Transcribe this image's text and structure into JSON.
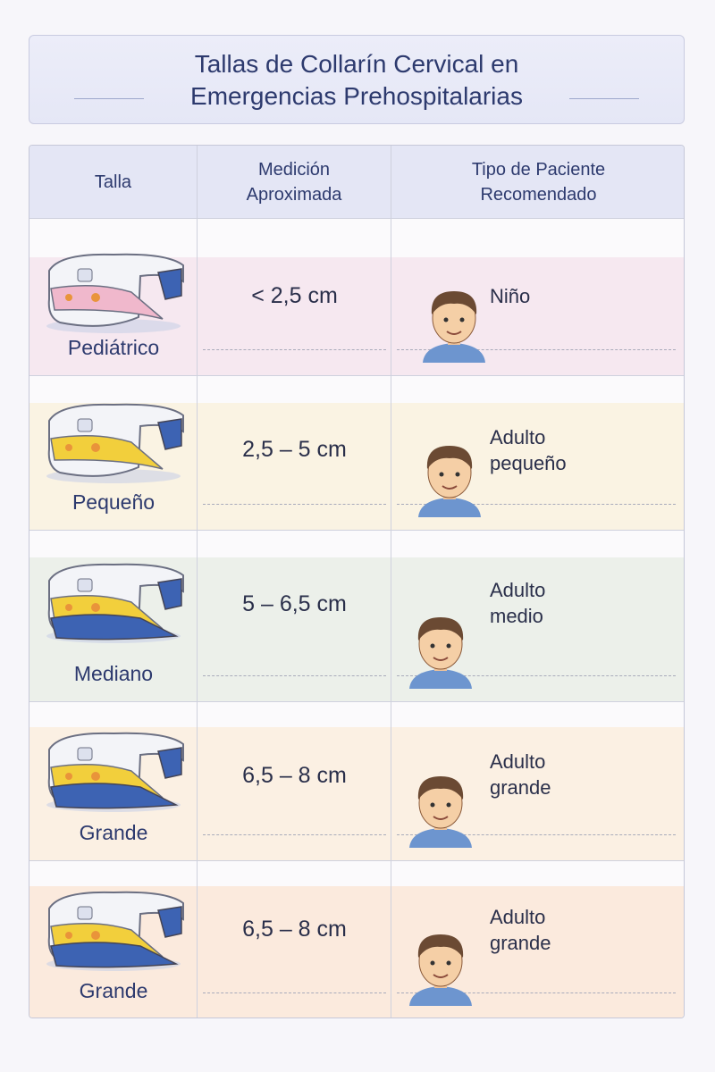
{
  "title": {
    "line1": "Tallas de Collarín Cervical en",
    "line2": "Emergencias Prehospitalarias"
  },
  "table": {
    "headers": [
      "Talla",
      "Medición Aproximada",
      "Tipo de Paciente Recomendado"
    ],
    "rows": [
      {
        "size": "Pediátrico",
        "measurement": "< 2,5 cm",
        "patient_line1": "Niño",
        "patient_line2": "",
        "band_color": "#f6e8f0",
        "collar_accent": "#f0b8cc",
        "icon": "pediatric-collar-icon"
      },
      {
        "size": "Pequeño",
        "measurement": "2,5 – 5 cm",
        "patient_line1": "Adulto",
        "patient_line2": "pequeño",
        "band_color": "#faf3e3",
        "collar_accent": "#f2cf3c",
        "icon": "small-collar-icon"
      },
      {
        "size": "Mediano",
        "measurement": "5 – 6,5 cm",
        "patient_line1": "Adulto",
        "patient_line2": "medio",
        "band_color": "#ecf0ea",
        "collar_accent": "#f2cf3c",
        "icon": "medium-collar-icon"
      },
      {
        "size": "Grande",
        "measurement": "6,5 – 8 cm",
        "patient_line1": "Adulto",
        "patient_line2": "grande",
        "band_color": "#fbf0e3",
        "collar_accent": "#f2cf3c",
        "icon": "large-collar-icon"
      },
      {
        "size": "Grande",
        "measurement": "6,5 – 8 cm",
        "patient_line1": "Adulto",
        "patient_line2": "grande",
        "band_color": "#fbeadd",
        "collar_accent": "#f2cf3c",
        "icon": "large-collar-icon"
      }
    ]
  }
}
